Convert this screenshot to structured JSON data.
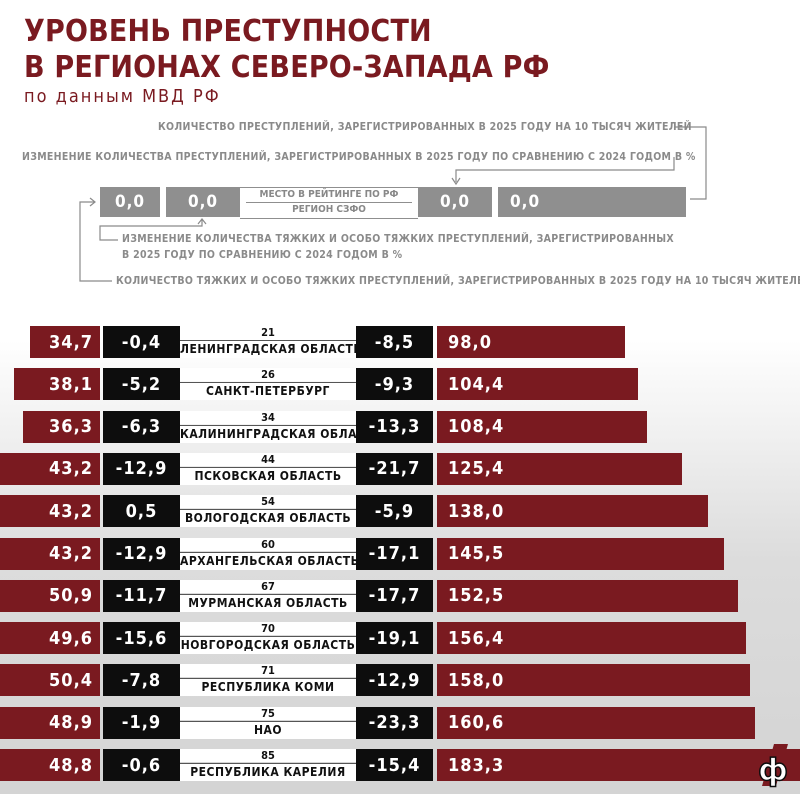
{
  "title_line1": "УРОВЕНЬ ПРЕСТУПНОСТИ",
  "title_line2": "В РЕГИОНАХ СЕВЕРО-ЗАПАДА РФ",
  "subtitle": "по данным МВД РФ",
  "legend": {
    "crimes_per_10k": "КОЛИЧЕСТВО ПРЕСТУПЛЕНИЙ, ЗАРЕГИСТРИРОВАННЫХ В 2025 ГОДУ НА 10 ТЫСЯЧ ЖИТЕЛЕЙ",
    "crimes_change": "ИЗМЕНЕНИЕ КОЛИЧЕСТВА ПРЕСТУПЛЕНИЙ, ЗАРЕГИСТРИРОВАННЫХ В 2025 ГОДУ ПО СРАВНЕНИЮ С 2024 ГОДОМ В %",
    "grave_change_line1": "ИЗМЕНЕНИЕ КОЛИЧЕСТВА ТЯЖКИХ И ОСОБО ТЯЖКИХ ПРЕСТУПЛЕНИЙ, ЗАРЕГИСТРИРОВАННЫХ",
    "grave_change_line2": "В 2025 ГОДУ ПО СРАВНЕНИЮ С 2024 ГОДОМ В %",
    "grave_per_10k": "КОЛИЧЕСТВО ТЯЖКИХ И ОСОБО ТЯЖКИХ ПРЕСТУПЛЕНИЙ, ЗАРЕГИСТРИРОВАННЫХ В 2025 ГОДУ НА 10 ТЫСЯЧ ЖИТЕЛЕЙ",
    "rank_label": "МЕСТО В РЕЙТИНГЕ ПО РФ",
    "region_label": "РЕГИОН СЗФО",
    "placeholder": "0,0"
  },
  "colors": {
    "accent": "#7a1a20",
    "dark": "#0d0d0d",
    "legend_gray": "#8f8f8f"
  },
  "logo": "ф",
  "chart_data": {
    "type": "table",
    "columns": [
      "grave_per_10k",
      "grave_change_pct",
      "rank_rf",
      "region",
      "crimes_change_pct",
      "crimes_per_10k"
    ],
    "rows": [
      {
        "grave": "34,7",
        "grave_chg": "-0,4",
        "rank": "21",
        "region": "ЛЕНИНГРАДСКАЯ ОБЛАСТЬ",
        "chg": "-8,5",
        "total": "98,0"
      },
      {
        "grave": "38,1",
        "grave_chg": "-5,2",
        "rank": "26",
        "region": "САНКТ-ПЕТЕРБУРГ",
        "chg": "-9,3",
        "total": "104,4"
      },
      {
        "grave": "36,3",
        "grave_chg": "-6,3",
        "rank": "34",
        "region": "КАЛИНИНГРАДСКАЯ ОБЛАСТЬ",
        "chg": "-13,3",
        "total": "108,4"
      },
      {
        "grave": "43,2",
        "grave_chg": "-12,9",
        "rank": "44",
        "region": "ПСКОВСКАЯ ОБЛАСТЬ",
        "chg": "-21,7",
        "total": "125,4"
      },
      {
        "grave": "43,2",
        "grave_chg": "0,5",
        "rank": "54",
        "region": "ВОЛОГОДСКАЯ ОБЛАСТЬ",
        "chg": "-5,9",
        "total": "138,0"
      },
      {
        "grave": "43,2",
        "grave_chg": "-12,9",
        "rank": "60",
        "region": "АРХАНГЕЛЬСКАЯ ОБЛАСТЬ",
        "chg": "-17,1",
        "total": "145,5"
      },
      {
        "grave": "50,9",
        "grave_chg": "-11,7",
        "rank": "67",
        "region": "МУРМАНСКАЯ ОБЛАСТЬ",
        "chg": "-17,7",
        "total": "152,5"
      },
      {
        "grave": "49,6",
        "grave_chg": "-15,6",
        "rank": "70",
        "region": "НОВГОРОДСКАЯ ОБЛАСТЬ",
        "chg": "-19,1",
        "total": "156,4"
      },
      {
        "grave": "50,4",
        "grave_chg": "-7,8",
        "rank": "71",
        "region": "РЕСПУБЛИКА КОМИ",
        "chg": "-12,9",
        "total": "158,0"
      },
      {
        "grave": "48,9",
        "grave_chg": "-1,9",
        "rank": "75",
        "region": "НАО",
        "chg": "-23,3",
        "total": "160,6"
      },
      {
        "grave": "48,8",
        "grave_chg": "-0,6",
        "rank": "85",
        "region": "РЕСПУБЛИКА КАРЕЛИЯ",
        "chg": "-15,4",
        "total": "183,3"
      }
    ]
  }
}
